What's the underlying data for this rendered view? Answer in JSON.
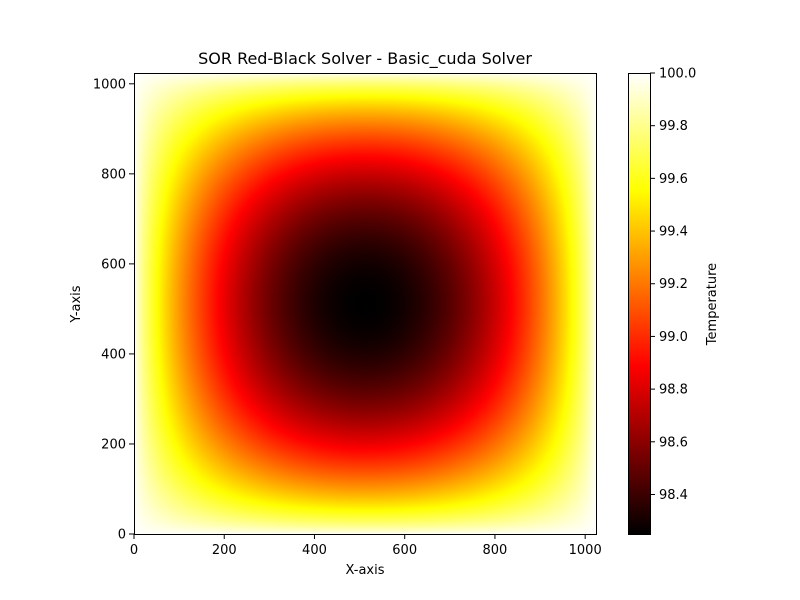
{
  "chart_data": {
    "type": "heatmap",
    "title": "SOR Red-Black Solver - Basic_cuda Solver",
    "xlabel": "X-axis",
    "ylabel": "Y-axis",
    "xlim": [
      0,
      1024
    ],
    "ylim": [
      0,
      1024
    ],
    "x_ticks": [
      0,
      200,
      400,
      600,
      800,
      1000
    ],
    "y_ticks": [
      0,
      200,
      400,
      600,
      800,
      1000
    ],
    "grid_size": 1024,
    "grid": false,
    "colormap": "hot",
    "colorbar": {
      "label": "Temperature",
      "range": [
        98.25,
        100.0
      ],
      "ticks": [
        "98.4",
        "98.6",
        "98.8",
        "99.0",
        "99.2",
        "99.4",
        "99.6",
        "99.8",
        "100.0"
      ],
      "placement": "right"
    },
    "field": {
      "description_values": {
        "boundary_value": 100.0,
        "center_value": 98.25,
        "center": [
          512,
          512
        ]
      }
    }
  }
}
